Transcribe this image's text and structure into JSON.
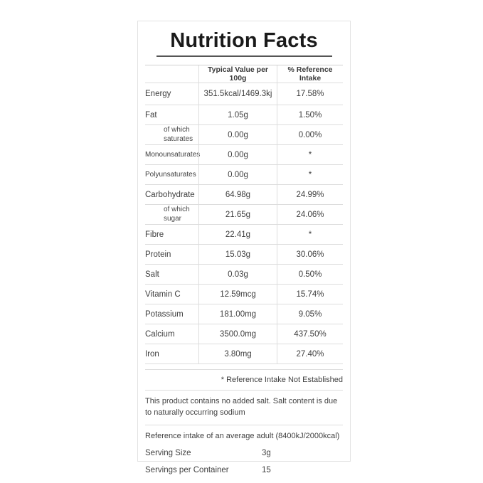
{
  "label": {
    "title": "Nutrition Facts",
    "table": {
      "headers": [
        "",
        "Typical Value per 100g",
        "% Reference Intake"
      ],
      "rows": [
        {
          "name": "Energy",
          "value": "351.5kcal/1469.3kj",
          "ri": "17.58%"
        },
        {
          "name": "Fat",
          "value": "1.05g",
          "ri": "1.50%"
        },
        {
          "name": "of which saturates",
          "value": "0.00g",
          "ri": "0.00%"
        },
        {
          "name": "Monounsaturates",
          "value": "0.00g",
          "ri": "*"
        },
        {
          "name": "Polyunsaturates",
          "value": "0.00g",
          "ri": "*"
        },
        {
          "name": "Carbohydrate",
          "value": "64.98g",
          "ri": "24.99%"
        },
        {
          "name": "of which sugar",
          "value": "21.65g",
          "ri": "24.06%"
        },
        {
          "name": "Fibre",
          "value": "22.41g",
          "ri": "*"
        },
        {
          "name": "Protein",
          "value": "15.03g",
          "ri": "30.06%"
        },
        {
          "name": "Salt",
          "value": "0.03g",
          "ri": "0.50%"
        },
        {
          "name": "Vitamin C",
          "value": "12.59mcg",
          "ri": "15.74%"
        },
        {
          "name": "Potassium",
          "value": "181.00mg",
          "ri": "9.05%"
        },
        {
          "name": "Calcium",
          "value": "3500.0mg",
          "ri": "437.50%"
        },
        {
          "name": "Iron",
          "value": "3.80mg",
          "ri": "27.40%"
        }
      ]
    },
    "notes": {
      "reference_note": "* Reference Intake Not Established",
      "salt_note": "This product contains no added salt. Salt content is due to naturally occurring sodium",
      "adult_note": "Reference intake of an average adult (8400kJ/2000kcal)"
    },
    "serving": {
      "size_label": "Serving Size",
      "size_value": "3g",
      "per_container_label": "Servings per Container",
      "per_container_value": "15"
    }
  }
}
